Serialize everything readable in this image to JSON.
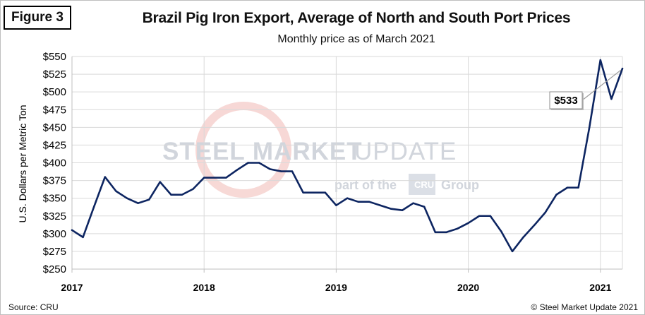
{
  "figure_label": "Figure 3",
  "source": "Source: CRU",
  "copyright": "© Steel Market Update 2021",
  "watermark": {
    "line1_bold": "STEEL MARKET",
    "line1_light": "UPDATE",
    "line2_a": "part of the",
    "line2_logo": "CRU",
    "line2_b": "Group"
  },
  "colors": {
    "line": "#0d2561",
    "grid": "#d9d9d9",
    "axis": "#bfbfbf"
  },
  "chart_data": {
    "type": "line",
    "title": "Brazil Pig Iron Export, Average of North and South Port Prices",
    "subtitle": "Monthly price as of March 2021",
    "ylabel": "U.S. Dollars per Metric Ton",
    "xlabel": "",
    "ylim": [
      250,
      550
    ],
    "grid": true,
    "y_ticks": [
      250,
      275,
      300,
      325,
      350,
      375,
      400,
      425,
      450,
      475,
      500,
      525,
      550
    ],
    "y_tick_labels": [
      "$250",
      "$275",
      "$300",
      "$325",
      "$350",
      "$375",
      "$400",
      "$425",
      "$450",
      "$475",
      "$500",
      "$525",
      "$550"
    ],
    "x_ticks": [
      0,
      12,
      24,
      36,
      48
    ],
    "x_tick_labels": [
      "2017",
      "2018",
      "2019",
      "2020",
      "2021"
    ],
    "x_index_max": 50,
    "annotation": {
      "label": "$533",
      "value": 533
    },
    "series": [
      {
        "name": "Average of North and South Port Prices",
        "x": [
          0,
          1,
          2,
          3,
          4,
          5,
          6,
          7,
          8,
          9,
          10,
          11,
          12,
          13,
          14,
          15,
          16,
          17,
          18,
          19,
          20,
          21,
          22,
          23,
          24,
          25,
          26,
          27,
          28,
          29,
          30,
          31,
          32,
          33,
          34,
          35,
          36,
          37,
          38,
          39,
          40,
          41,
          42,
          43,
          44,
          45,
          46,
          47,
          48,
          49,
          50
        ],
        "values": [
          305,
          295,
          338,
          380,
          360,
          350,
          343,
          348,
          373,
          355,
          355,
          363,
          379,
          379,
          379,
          390,
          400,
          400,
          391,
          388,
          388,
          358,
          358,
          358,
          340,
          350,
          345,
          345,
          340,
          335,
          333,
          343,
          338,
          302,
          302,
          307,
          315,
          325,
          325,
          303,
          275,
          295,
          312,
          330,
          355,
          365,
          365,
          450,
          545,
          490,
          533
        ]
      }
    ]
  }
}
